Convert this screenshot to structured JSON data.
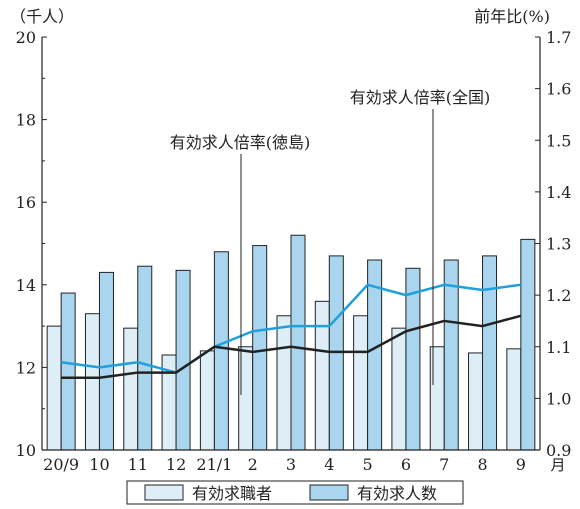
{
  "chart_data": {
    "type": "bar+line",
    "categories": [
      "20/9",
      "10",
      "11",
      "12",
      "21/1",
      "2",
      "3",
      "4",
      "5",
      "6",
      "7",
      "8",
      "9"
    ],
    "x_unit_label": "月",
    "left_axis": {
      "unit_label": "（千人）",
      "ylim": [
        10,
        20
      ],
      "ticks": [
        10,
        12,
        14,
        16,
        18,
        20
      ]
    },
    "right_axis": {
      "unit_label": "前年比(%)",
      "ylim": [
        0.9,
        1.7
      ],
      "ticks": [
        0.9,
        1.0,
        1.1,
        1.2,
        1.3,
        1.4,
        1.5,
        1.6,
        1.7
      ]
    },
    "bar_series": [
      {
        "name": "有効求職者",
        "color": "#ddeef6",
        "values": [
          13.0,
          13.3,
          12.95,
          12.3,
          12.4,
          12.5,
          13.25,
          13.6,
          13.25,
          12.95,
          12.5,
          12.35,
          12.45
        ]
      },
      {
        "name": "有効求人数",
        "color": "#a9d6ee",
        "values": [
          13.8,
          14.3,
          14.45,
          14.35,
          14.8,
          14.95,
          15.2,
          14.7,
          14.6,
          14.4,
          14.6,
          14.7,
          15.1
        ]
      }
    ],
    "line_series": [
      {
        "name": "有効求人倍率(徳島)",
        "color": "#1ea0dc",
        "values": [
          1.07,
          1.06,
          1.07,
          1.05,
          1.1,
          1.13,
          1.14,
          1.14,
          1.22,
          1.2,
          1.22,
          1.21,
          1.22
        ]
      },
      {
        "name": "有効求人倍率(全国)",
        "color": "#222222",
        "values": [
          1.04,
          1.04,
          1.05,
          1.05,
          1.1,
          1.09,
          1.1,
          1.09,
          1.09,
          1.13,
          1.15,
          1.14,
          1.16
        ]
      }
    ],
    "annotations": [
      {
        "text": "有効求人倍率(徳島)",
        "series": "有効求人倍率(徳島)",
        "category": "21/1"
      },
      {
        "text": "有効求人倍率(全国)",
        "series": "有効求人倍率(全国)",
        "category": "6"
      }
    ],
    "legend_position": "bottom",
    "grid": false
  }
}
